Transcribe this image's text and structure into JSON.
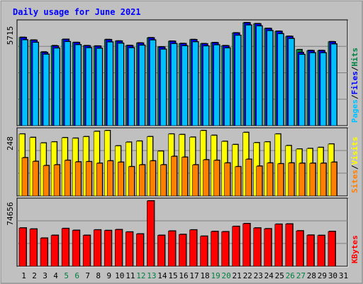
{
  "chart_data": {
    "type": "bar",
    "title": "Daily usage for June 2021",
    "categories": [
      "1",
      "2",
      "3",
      "4",
      "5",
      "6",
      "7",
      "8",
      "9",
      "10",
      "11",
      "12",
      "13",
      "14",
      "15",
      "16",
      "17",
      "18",
      "19",
      "20",
      "21",
      "22",
      "23",
      "24",
      "25",
      "26",
      "27",
      "28",
      "29",
      "30",
      "31"
    ],
    "weekend_categories": [
      "5",
      "6",
      "12",
      "13",
      "19",
      "20",
      "26",
      "27"
    ],
    "panels": [
      {
        "name": "hits-files-pages",
        "max_label": "5715",
        "ymax": 5715,
        "series": [
          {
            "name": "Hits",
            "color": "#008040",
            "values": [
              4900,
              4750,
              4090,
              4440,
              4790,
              4620,
              4440,
              4420,
              4780,
              4700,
              4450,
              4590,
              4880,
              4370,
              4690,
              4560,
              4780,
              4550,
              4610,
              4440,
              5150,
              5715,
              5660,
              5400,
              5240,
              4960,
              4220,
              4170,
              4170,
              4660,
              0
            ]
          },
          {
            "name": "Files",
            "color": "#0000ff",
            "values": [
              4890,
              4740,
              4060,
              4420,
              4790,
              4610,
              4430,
              4410,
              4770,
              4690,
              4440,
              4580,
              4870,
              4360,
              4680,
              4550,
              4770,
              4540,
              4600,
              4430,
              5140,
              5705,
              5650,
              5390,
              5230,
              4950,
              4060,
              4160,
              4160,
              4650,
              0
            ]
          },
          {
            "name": "Pages",
            "color": "#00c0ff",
            "values": [
              4760,
              4620,
              3960,
              4300,
              4660,
              4490,
              4320,
              4290,
              4640,
              4570,
              4320,
              4460,
              4750,
              4240,
              4550,
              4430,
              4650,
              4420,
              4480,
              4310,
              5010,
              5580,
              5530,
              5270,
              5100,
              4830,
              3950,
              4040,
              4040,
              4530,
              0
            ]
          }
        ],
        "legend": [
          "Pages",
          "/",
          "Files",
          "/",
          "Hits"
        ]
      },
      {
        "name": "visits-sites",
        "max_label": "248",
        "ymax": 248,
        "series": [
          {
            "name": "Visits",
            "color": "#ffff00",
            "values": [
              235,
              222,
              201,
              205,
              221,
              219,
              225,
              245,
              248,
              190,
              204,
              208,
              225,
              170,
              235,
              233,
              223,
              248,
              230,
              207,
              195,
              241,
              202,
              205,
              235,
              191,
              178,
              180,
              184,
              197,
              0
            ]
          },
          {
            "name": "Sites",
            "color": "#ff8000",
            "values": [
              145,
              131,
              115,
              118,
              135,
              129,
              130,
              124,
              133,
              128,
              111,
              118,
              133,
              118,
              150,
              147,
              118,
              137,
              135,
              125,
              111,
              139,
              113,
              125,
              122,
              125,
              124,
              124,
              124,
              128,
              0
            ]
          }
        ],
        "legend": [
          "Sites",
          "/",
          "Visits"
        ]
      },
      {
        "name": "kbytes",
        "max_label": "74656",
        "ymax": 74656,
        "series": [
          {
            "name": "KBytes",
            "color": "#ff0000",
            "values": [
              43700,
              42500,
              32100,
              35300,
              43100,
              41000,
              35300,
              41500,
              40800,
              41800,
              39100,
              36900,
              74656,
              35300,
              40200,
              36300,
              41500,
              34300,
              39700,
              39400,
              45500,
              48700,
              43700,
              42800,
              48000,
              48300,
              40400,
              35500,
              35200,
              39700,
              0
            ]
          }
        ],
        "legend": [
          "KBytes"
        ]
      }
    ],
    "colors": {
      "background": "#c0c0c0",
      "plot": "#c0c0c0",
      "title": "#0000ff",
      "weekday_label": "#000000",
      "weekend_label": "#008040",
      "grid": "#808080",
      "max_label": "#000000"
    }
  }
}
